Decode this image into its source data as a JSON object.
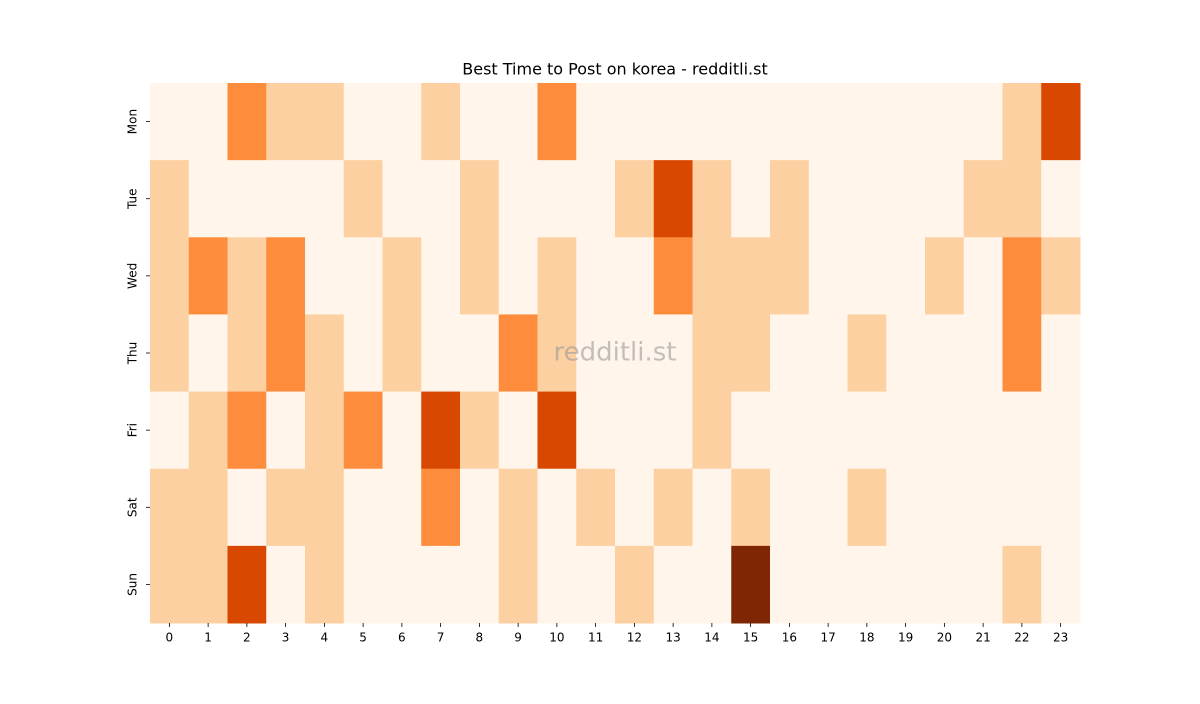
{
  "chart_data": {
    "type": "heatmap",
    "title": "Best Time to Post on korea - redditli.st",
    "watermark": "redditli.st",
    "x": [
      0,
      1,
      2,
      3,
      4,
      5,
      6,
      7,
      8,
      9,
      10,
      11,
      12,
      13,
      14,
      15,
      16,
      17,
      18,
      19,
      20,
      21,
      22,
      23
    ],
    "y": [
      "Mon",
      "Tue",
      "Wed",
      "Thu",
      "Fri",
      "Sat",
      "Sun"
    ],
    "z": [
      [
        0,
        0,
        2,
        1,
        1,
        0,
        0,
        1,
        0,
        0,
        2,
        0,
        0,
        0,
        0,
        0,
        0,
        0,
        0,
        0,
        0,
        0,
        1,
        3
      ],
      [
        1,
        0,
        0,
        0,
        0,
        1,
        0,
        0,
        1,
        0,
        0,
        0,
        1,
        3,
        1,
        0,
        1,
        0,
        0,
        0,
        0,
        1,
        1,
        0
      ],
      [
        1,
        2,
        1,
        2,
        0,
        0,
        1,
        0,
        1,
        0,
        1,
        0,
        0,
        2,
        1,
        1,
        1,
        0,
        0,
        0,
        1,
        0,
        2,
        1
      ],
      [
        1,
        0,
        1,
        2,
        1,
        0,
        1,
        0,
        0,
        2,
        1,
        0,
        0,
        0,
        1,
        1,
        0,
        0,
        1,
        0,
        0,
        0,
        2,
        0
      ],
      [
        0,
        1,
        2,
        0,
        1,
        2,
        0,
        3,
        1,
        0,
        3,
        0,
        0,
        0,
        1,
        0,
        0,
        0,
        0,
        0,
        0,
        0,
        0,
        0
      ],
      [
        1,
        1,
        0,
        1,
        1,
        0,
        0,
        2,
        0,
        1,
        0,
        1,
        0,
        1,
        0,
        1,
        0,
        0,
        1,
        0,
        0,
        0,
        0,
        0
      ],
      [
        1,
        1,
        3,
        0,
        1,
        0,
        0,
        0,
        0,
        1,
        0,
        0,
        1,
        0,
        0,
        4,
        0,
        0,
        0,
        0,
        0,
        0,
        1,
        0
      ]
    ],
    "zlim": [
      0,
      4
    ],
    "colormap": [
      "#fff5eb",
      "#fdd0a2",
      "#fd8d3c",
      "#d94801",
      "#7f2704"
    ]
  }
}
